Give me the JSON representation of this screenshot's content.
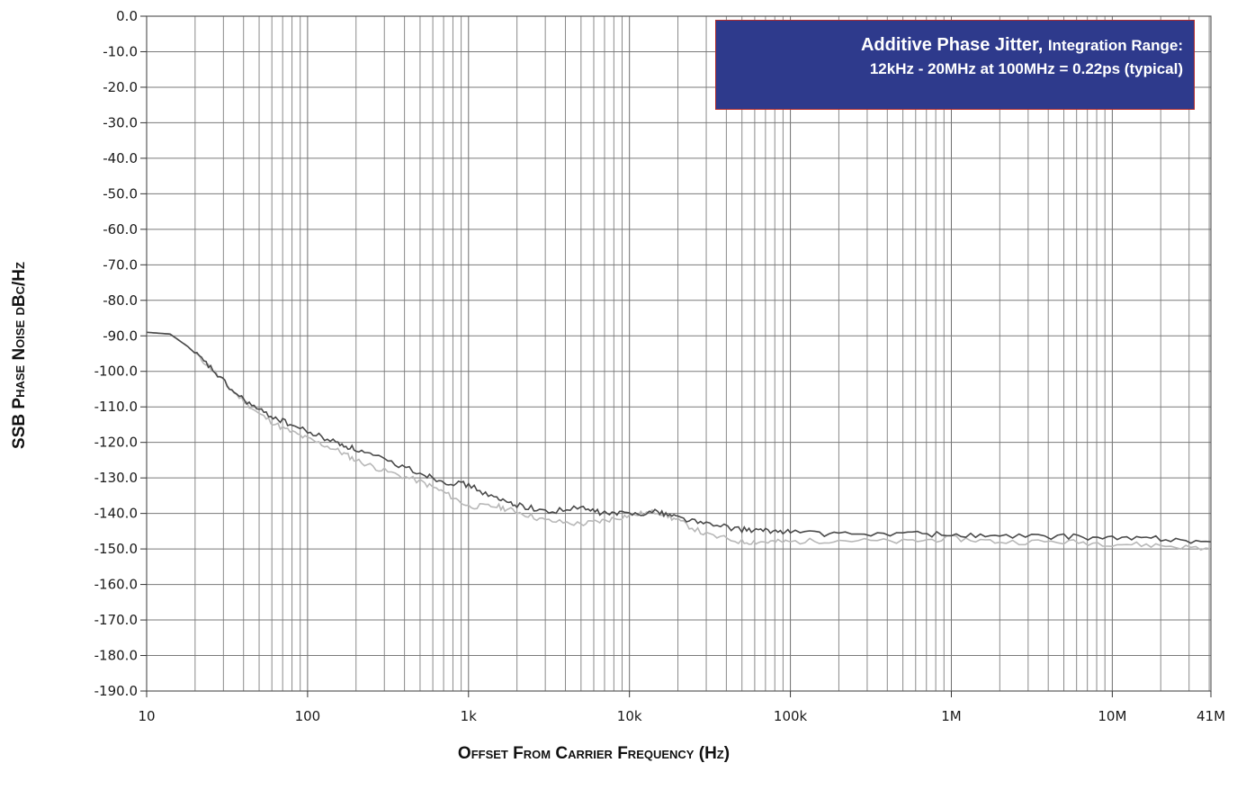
{
  "chart_data": {
    "type": "line",
    "xscale": "log",
    "xlim": [
      10,
      41000000
    ],
    "ylim": [
      -190,
      0
    ],
    "xlabel": "Offset From Carrier Frequency (Hz)",
    "ylabel": "SSB Phase Noise dBc/Hz",
    "x_tick_labels": [
      "10",
      "100",
      "1k",
      "10k",
      "100k",
      "1M",
      "10M",
      "41M"
    ],
    "x_tick_values": [
      10,
      100,
      1000,
      10000,
      100000,
      1000000,
      10000000,
      41000000
    ],
    "y_tick_labels": [
      "0.0",
      "-10.0",
      "-20.0",
      "-30.0",
      "-40.0",
      "-50.0",
      "-60.0",
      "-70.0",
      "-80.0",
      "-90.0",
      "-100.0",
      "-110.0",
      "-120.0",
      "-130.0",
      "-140.0",
      "-150.0",
      "-160.0",
      "-170.0",
      "-180.0",
      "-190.0"
    ],
    "y_tick_values": [
      0,
      -10,
      -20,
      -30,
      -40,
      -50,
      -60,
      -70,
      -80,
      -90,
      -100,
      -110,
      -120,
      -130,
      -140,
      -150,
      -160,
      -170,
      -180,
      -190
    ],
    "grid": true,
    "annotation": {
      "line1_bold": "Additive Phase Jitter,",
      "line1_rest": "Integration Range:",
      "line2": "12kHz - 20MHz at 100MHz = 0.22ps (typical)"
    },
    "series": [
      {
        "color": "#4a4a4a",
        "x": [
          10,
          14,
          18,
          25,
          35,
          50,
          70,
          100,
          150,
          200,
          300,
          500,
          700,
          1000,
          1500,
          2000,
          3000,
          5000,
          7000,
          10000,
          15000,
          20000,
          30000,
          50000,
          70000,
          100000,
          200000,
          500000,
          1000000,
          2000000,
          5000000,
          10000000,
          20000000,
          41000000
        ],
        "y": [
          -89,
          -89.5,
          -93,
          -99,
          -106,
          -111,
          -114,
          -117,
          -120,
          -122,
          -125,
          -128.5,
          -131,
          -132,
          -136,
          -137.5,
          -139.5,
          -138.5,
          -140,
          -140,
          -139.5,
          -141,
          -143,
          -144.5,
          -145,
          -145,
          -146,
          -145.5,
          -146,
          -146.5,
          -146.5,
          -147,
          -147,
          -148
        ]
      },
      {
        "color": "#b8b8b8",
        "x": [
          10,
          14,
          18,
          25,
          35,
          50,
          70,
          100,
          150,
          200,
          300,
          500,
          700,
          1000,
          1500,
          2000,
          3000,
          5000,
          7000,
          10000,
          15000,
          20000,
          30000,
          50000,
          70000,
          100000,
          200000,
          500000,
          1000000,
          2000000,
          5000000,
          10000000,
          20000000,
          41000000
        ],
        "y": [
          -89,
          -89.5,
          -93,
          -99,
          -106,
          -112,
          -116,
          -119,
          -122,
          -125,
          -128,
          -131,
          -134,
          -138,
          -138,
          -139.5,
          -142,
          -143,
          -142,
          -140.5,
          -139.5,
          -142,
          -146,
          -148,
          -148,
          -148,
          -147.5,
          -148,
          -147,
          -148,
          -148,
          -148.5,
          -149,
          -150
        ]
      }
    ]
  }
}
